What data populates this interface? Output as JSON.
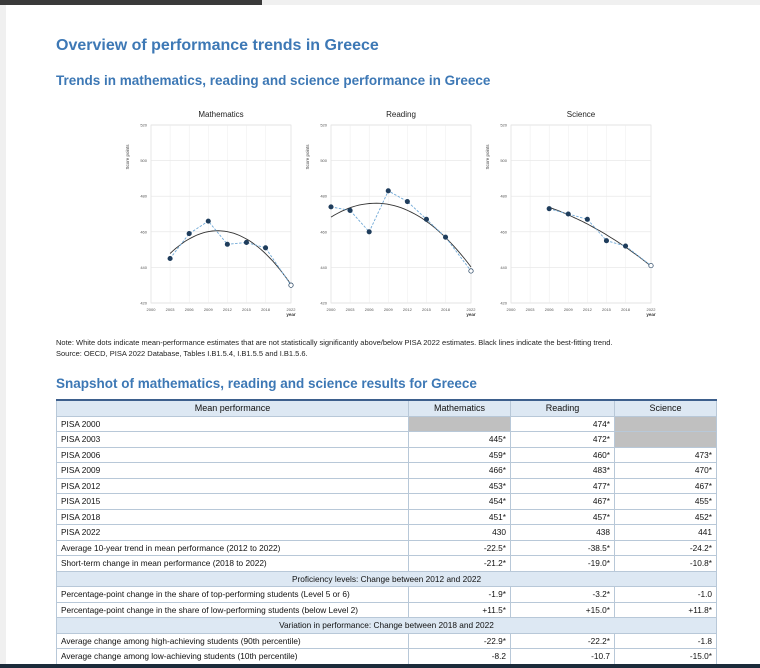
{
  "title": "Overview of performance trends in Greece",
  "trends_heading": "Trends in mathematics, reading and science performance in Greece",
  "snapshot_heading": "Snapshot of mathematics, reading and science results for Greece",
  "note_line1": "Note: White dots indicate mean-performance estimates that are not statistically significantly above/below PISA 2022 estimates. Black lines indicate the best-fitting trend.",
  "note_line2": "Source: OECD, PISA 2022 Database, Tables I.B1.5.4, I.B1.5.5 and I.B1.5.6.",
  "chart_data": [
    {
      "type": "line",
      "title": "Mathematics",
      "ylabel": "Score points",
      "xlabel": "year",
      "x": [
        2003,
        2006,
        2009,
        2012,
        2015,
        2018,
        2022
      ],
      "y": [
        445,
        459,
        466,
        453,
        454,
        451,
        430
      ],
      "significant": [
        true,
        true,
        true,
        true,
        true,
        true,
        false
      ],
      "xticks": [
        "2000",
        "2003",
        "2006",
        "2009",
        "2012",
        "2015",
        "2018",
        "2022"
      ],
      "yticks": [
        "420",
        "440",
        "460",
        "480",
        "500",
        "520"
      ],
      "ylim": [
        420,
        520
      ],
      "grid": true
    },
    {
      "type": "line",
      "title": "Reading",
      "ylabel": "Score points",
      "xlabel": "year",
      "x": [
        2000,
        2003,
        2006,
        2009,
        2012,
        2015,
        2018,
        2022
      ],
      "y": [
        474,
        472,
        460,
        483,
        477,
        467,
        457,
        438
      ],
      "significant": [
        true,
        true,
        true,
        true,
        true,
        true,
        true,
        false
      ],
      "xticks": [
        "2000",
        "2003",
        "2006",
        "2009",
        "2012",
        "2015",
        "2018",
        "2022"
      ],
      "yticks": [
        "420",
        "440",
        "460",
        "480",
        "500",
        "520"
      ],
      "ylim": [
        420,
        520
      ],
      "grid": true
    },
    {
      "type": "line",
      "title": "Science",
      "ylabel": "Score points",
      "xlabel": "year",
      "x": [
        2006,
        2009,
        2012,
        2015,
        2018,
        2022
      ],
      "y": [
        473,
        470,
        467,
        455,
        452,
        441
      ],
      "significant": [
        true,
        true,
        true,
        true,
        true,
        false
      ],
      "xticks": [
        "2000",
        "2003",
        "2006",
        "2009",
        "2012",
        "2015",
        "2018",
        "2022"
      ],
      "yticks": [
        "420",
        "440",
        "460",
        "480",
        "500",
        "520"
      ],
      "ylim": [
        420,
        520
      ],
      "grid": true
    }
  ],
  "table": {
    "headers": [
      "Mean performance",
      "Mathematics",
      "Reading",
      "Science"
    ],
    "rows": [
      {
        "label": "PISA 2000",
        "cells": [
          "",
          "474*",
          ""
        ],
        "grey": [
          true,
          false,
          true
        ]
      },
      {
        "label": "PISA 2003",
        "cells": [
          "445*",
          "472*",
          ""
        ],
        "grey": [
          false,
          false,
          true
        ]
      },
      {
        "label": "PISA 2006",
        "cells": [
          "459*",
          "460*",
          "473*"
        ]
      },
      {
        "label": "PISA 2009",
        "cells": [
          "466*",
          "483*",
          "470*"
        ]
      },
      {
        "label": "PISA 2012",
        "cells": [
          "453*",
          "477*",
          "467*"
        ]
      },
      {
        "label": "PISA 2015",
        "cells": [
          "454*",
          "467*",
          "455*"
        ]
      },
      {
        "label": "PISA 2018",
        "cells": [
          "451*",
          "457*",
          "452*"
        ]
      },
      {
        "label": "PISA 2022",
        "cells": [
          "430",
          "438",
          "441"
        ]
      },
      {
        "label": "Average 10-year trend in mean performance (2012 to 2022)",
        "cells": [
          "-22.5*",
          "-38.5*",
          "-24.2*"
        ]
      },
      {
        "label": "Short-term change in mean performance (2018 to 2022)",
        "cells": [
          "-21.2*",
          "-19.0*",
          "-10.8*"
        ]
      },
      {
        "section": "Proficiency levels: Change between 2012 and 2022"
      },
      {
        "label": "Percentage-point change in the share of top-performing students (Level 5 or 6)",
        "cells": [
          "-1.9*",
          "-3.2*",
          "-1.0"
        ]
      },
      {
        "label": "Percentage-point change in the share of low-performing students (below Level 2)",
        "cells": [
          "+11.5*",
          "+15.0*",
          "+11.8*"
        ]
      },
      {
        "section": "Variation in performance: Change between 2018 and 2022"
      },
      {
        "label": "Average change among high-achieving students (90th percentile)",
        "cells": [
          "-22.9*",
          "-22.2*",
          "-1.8"
        ]
      },
      {
        "label": "Average change among low-achieving students (10th percentile)",
        "cells": [
          "-8.2",
          "-10.7",
          "-15.0*"
        ]
      }
    ]
  }
}
